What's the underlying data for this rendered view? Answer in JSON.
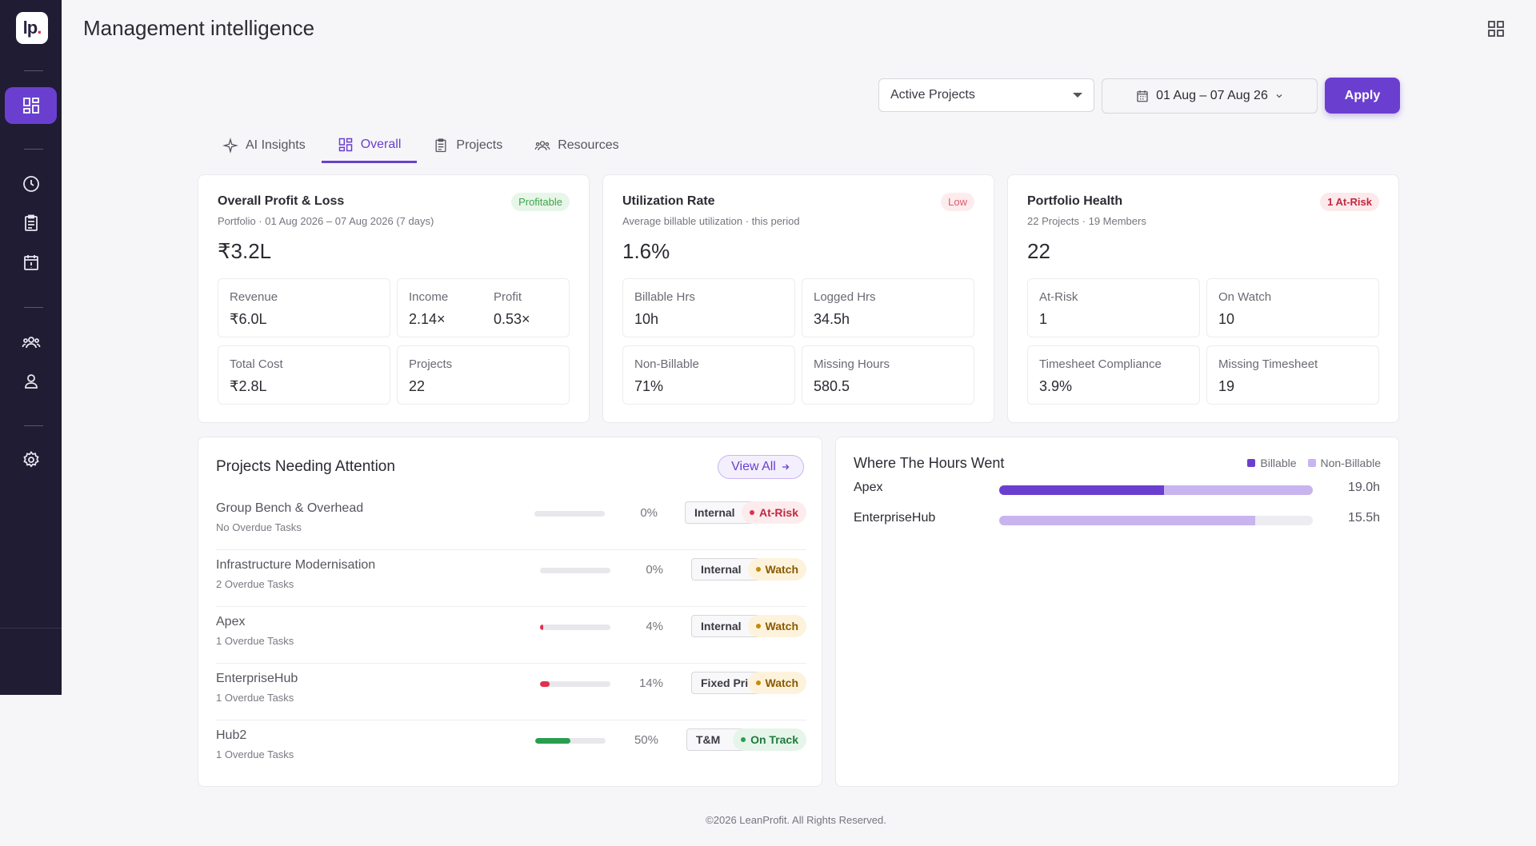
{
  "app": {
    "logo_text": "lp",
    "logo_dot": "."
  },
  "header": {
    "title": "Management intelligence"
  },
  "filters": {
    "project_filter": "Active Projects",
    "date_range": "01 Aug – 07 Aug 26",
    "apply_label": "Apply"
  },
  "tabs": [
    {
      "label": "AI Insights",
      "icon": "sparkle-icon"
    },
    {
      "label": "Overall",
      "icon": "dashboard-icon"
    },
    {
      "label": "Projects",
      "icon": "clipboard-icon"
    },
    {
      "label": "Resources",
      "icon": "people-icon"
    }
  ],
  "pnl": {
    "title": "Overall Profit & Loss",
    "subtitle": "Portfolio · 01 Aug 2026 – 07 Aug 2026 (7 days)",
    "badge": "Profitable",
    "big_value": "₹3.2L",
    "revenue_label": "Revenue",
    "revenue_value": "₹6.0L",
    "income_label": "Income",
    "income_value": "2.14×",
    "profit_label": "Profit",
    "profit_value": "0.53×",
    "cost_label": "Total Cost",
    "cost_value": "₹2.8L",
    "projects_label": "Projects",
    "projects_value": "22"
  },
  "utilization": {
    "title": "Utilization Rate",
    "subtitle": "Average billable utilization · this period",
    "badge": "Low",
    "big_value": "1.6%",
    "billable_label": "Billable Hrs",
    "billable_value": "10h",
    "logged_label": "Logged Hrs",
    "logged_value": "34.5h",
    "nonbill_label": "Non-Billable",
    "nonbill_value": "71%",
    "missing_label": "Missing Hours",
    "missing_value": "580.5"
  },
  "health": {
    "title": "Portfolio Health",
    "subtitle": "22 Projects · 19 Members",
    "badge": "1 At-Risk",
    "big_value": "22",
    "atrisk_label": "At-Risk",
    "atrisk_value": "1",
    "watch_label": "On Watch",
    "watch_value": "10",
    "compliance_label": "Timesheet Compliance",
    "compliance_value": "3.9%",
    "missing_ts_label": "Missing Timesheet",
    "missing_ts_value": "19"
  },
  "attention": {
    "title": "Projects Needing Attention",
    "view_all": "View All",
    "rows": [
      {
        "name": "Group Bench & Overhead",
        "sub": "No Overdue Tasks",
        "progress": 0,
        "pct": "0%",
        "type": "Internal",
        "status": "At-Risk",
        "color": "#e0314b"
      },
      {
        "name": "Infrastructure Modernisation",
        "sub": "2 Overdue Tasks",
        "progress": 0,
        "pct": "0%",
        "type": "Internal",
        "status": "Watch",
        "color": "#e0314b"
      },
      {
        "name": "Apex",
        "sub": "1 Overdue Tasks",
        "progress": 4,
        "pct": "4%",
        "type": "Internal",
        "status": "Watch",
        "color": "#e0314b"
      },
      {
        "name": "EnterpriseHub",
        "sub": "1 Overdue Tasks",
        "progress": 14,
        "pct": "14%",
        "type": "Fixed Price",
        "status": "Watch",
        "color": "#e0314b"
      },
      {
        "name": "Hub2",
        "sub": "1 Overdue Tasks",
        "progress": 50,
        "pct": "50%",
        "type": "T&M",
        "status": "On Track",
        "color": "#2a9d4e"
      }
    ]
  },
  "hours": {
    "title": "Where The Hours Went",
    "legend_billable": "Billable",
    "legend_nonbillable": "Non-Billable",
    "colors": {
      "billable": "#6a3fd0",
      "nonbillable": "#c8b4ee"
    },
    "rows": [
      {
        "name": "Apex",
        "billable": 10,
        "nonbillable": 9,
        "total": 19,
        "value": "19.0h"
      },
      {
        "name": "EnterpriseHub",
        "billable": 0,
        "nonbillable": 15.5,
        "total": 15.5,
        "value": "15.5h"
      }
    ],
    "scale_max": 19
  },
  "footer": {
    "text": "©2026 LeanProfit. All Rights Reserved."
  }
}
